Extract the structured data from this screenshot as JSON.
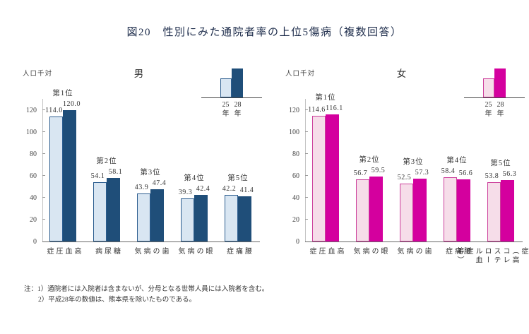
{
  "title": "図20　性別にみた通院者率の上位5傷病（複数回答）",
  "legend": {
    "years": [
      {
        "num": "25",
        "suffix": "年"
      },
      {
        "num": "28",
        "suffix": "年"
      }
    ]
  },
  "notes": [
    "注：1）通院者には入院者は含まないが、分母となる世帯人員には入院者を含む。",
    "2）平成28年の数値は、熊本県を除いたものである。"
  ],
  "chart_data": [
    {
      "type": "bar",
      "title": "男",
      "unit": "人口千対",
      "categories": [
        "高血圧症",
        "糖尿病",
        "歯の病気",
        "眼の病気",
        "腰痛症"
      ],
      "rank_labels": [
        "第1位",
        "第2位",
        "第3位",
        "第4位",
        "第5位"
      ],
      "series": [
        {
          "name": "25年",
          "fill": "#d9e6f2",
          "stroke": "#2c5d8f",
          "values": [
            114.0,
            54.1,
            43.9,
            39.3,
            42.2
          ]
        },
        {
          "name": "28年",
          "fill": "#1f4e79",
          "stroke": "#1f4e79",
          "values": [
            120.0,
            58.1,
            47.4,
            42.4,
            41.4
          ]
        }
      ],
      "ylim": [
        0,
        130
      ],
      "yticks": [
        0,
        20,
        40,
        60,
        80,
        100,
        120
      ],
      "grid": false,
      "legend_position": "top-right"
    },
    {
      "type": "bar",
      "title": "女",
      "unit": "人口千対",
      "categories": [
        "高血圧症",
        "眼の病気",
        "歯の病気",
        "腰痛症",
        "脂質異常症\n（高コレステ\nロール血症\n等）"
      ],
      "rank_labels": [
        "第1位",
        "第2位",
        "第3位",
        "第4位",
        "第5位"
      ],
      "series": [
        {
          "name": "25年",
          "fill": "#f6dde9",
          "stroke": "#cc3f9b",
          "values": [
            114.6,
            56.7,
            52.5,
            58.4,
            53.8
          ]
        },
        {
          "name": "28年",
          "fill": "#d4009e",
          "stroke": "#d4009e",
          "values": [
            116.1,
            59.5,
            57.3,
            56.6,
            56.3
          ]
        }
      ],
      "ylim": [
        0,
        130
      ],
      "yticks": [
        0,
        20,
        40,
        60,
        80,
        100,
        120
      ],
      "grid": false,
      "legend_position": "top-right"
    }
  ]
}
